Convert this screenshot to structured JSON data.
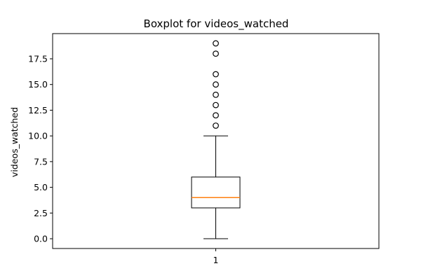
{
  "chart_data": {
    "type": "boxplot",
    "title": "Boxplot for videos_watched",
    "xlabel": "",
    "ylabel": "videos_watched",
    "categories": [
      "1"
    ],
    "ylim": [
      -0.95,
      19.95
    ],
    "y_ticks": [
      0.0,
      2.5,
      5.0,
      7.5,
      10.0,
      12.5,
      15.0,
      17.5
    ],
    "y_tick_labels": [
      "0.0",
      "2.5",
      "5.0",
      "7.5",
      "10.0",
      "12.5",
      "15.0",
      "17.5"
    ],
    "x_tick_labels": [
      "1"
    ],
    "grid": false,
    "boxes": [
      {
        "category": "1",
        "whisker_low": 0,
        "q1": 3,
        "median": 4,
        "q3": 6,
        "whisker_high": 10,
        "outliers": [
          11,
          12,
          13,
          14,
          15,
          16,
          18,
          19
        ]
      }
    ],
    "colors": {
      "box": "#000000",
      "median": "#ff7f0e",
      "outlier": "#000000"
    }
  }
}
